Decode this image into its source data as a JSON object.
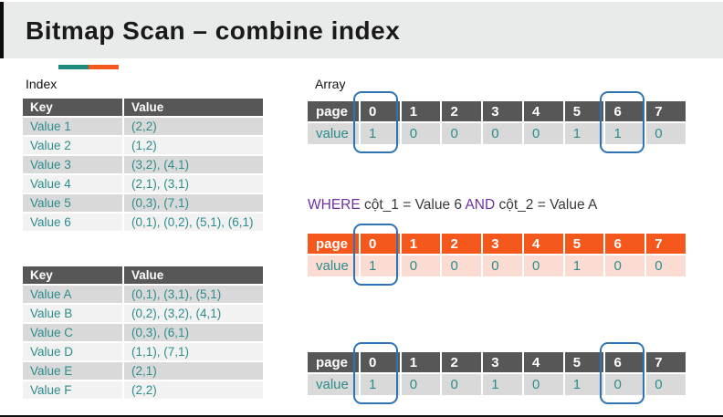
{
  "title": "Bitmap Scan – combine index",
  "colors": {
    "teal_accent": "#1e8a7e",
    "orange_accent": "#f4581c",
    "header_gray": "#575757",
    "row_gray": "#d9d9d9",
    "row_light": "#f2f2f2",
    "value_teal": "#2e8c8c",
    "orange_row": "#fbdcd2",
    "highlight_blue": "#2e74b5",
    "keyword_purple": "#7030a0"
  },
  "index_section": {
    "label": "Index",
    "table_col1": {
      "headers": [
        "Key",
        "Value"
      ],
      "rows": [
        [
          "Value 1",
          "(2,2)"
        ],
        [
          "Value 2",
          "(1,2)"
        ],
        [
          "Value 3",
          "(3,2), (4,1)"
        ],
        [
          "Value 4",
          "(2,1), (3,1)"
        ],
        [
          "Value 5",
          "(0,3), (7,1)"
        ],
        [
          "Value 6",
          "(0,1), (0,2), (5,1), (6,1)"
        ]
      ]
    },
    "table_col2": {
      "headers": [
        "Key",
        "Value"
      ],
      "rows": [
        [
          "Value A",
          "(0,1), (3,1), (5,1)"
        ],
        [
          "Value B",
          "(0,2), (3,2), (4,1)"
        ],
        [
          "Value C",
          "(0,3), (6,1)"
        ],
        [
          "Value D",
          "(1,1), (7,1)"
        ],
        [
          "Value E",
          "(2,1)"
        ],
        [
          "Value F",
          "(2,2)"
        ]
      ]
    }
  },
  "array_section": {
    "label": "Array",
    "where_clause": {
      "kw1": "WHERE",
      "cond1": " cột_1 = Value 6 ",
      "kw2": "AND",
      "cond2": " cột_2 = Value A"
    },
    "bitmap_top": {
      "row_labels": [
        "page",
        "value"
      ],
      "pages": [
        "0",
        "1",
        "2",
        "3",
        "4",
        "5",
        "6",
        "7"
      ],
      "values": [
        "1",
        "0",
        "0",
        "0",
        "0",
        "1",
        "1",
        "0"
      ],
      "highlight_cols": [
        0,
        6
      ]
    },
    "bitmap_result": {
      "row_labels": [
        "page",
        "value"
      ],
      "pages": [
        "0",
        "1",
        "2",
        "3",
        "4",
        "5",
        "6",
        "7"
      ],
      "values": [
        "1",
        "0",
        "0",
        "0",
        "0",
        "1",
        "0",
        "0"
      ],
      "highlight_cols": [
        0
      ]
    },
    "bitmap_bottom": {
      "row_labels": [
        "page",
        "value"
      ],
      "pages": [
        "0",
        "1",
        "2",
        "3",
        "4",
        "5",
        "6",
        "7"
      ],
      "values": [
        "1",
        "0",
        "0",
        "1",
        "0",
        "1",
        "0",
        "0"
      ],
      "highlight_cols": [
        0,
        6
      ]
    }
  }
}
